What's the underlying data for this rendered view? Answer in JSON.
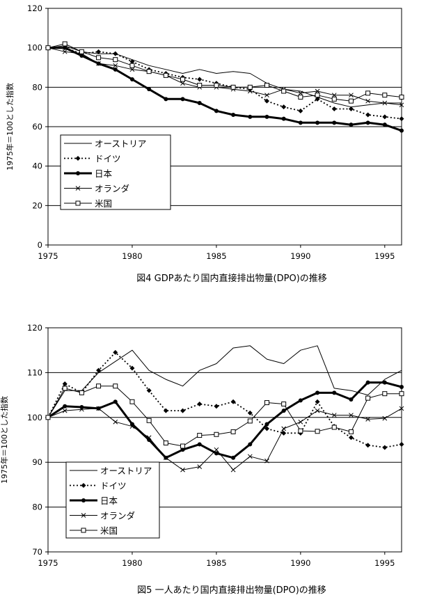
{
  "chart_data": [
    {
      "type": "line",
      "title": "図4 GDPあたり国内直接排出物量(DPO)の推移",
      "xlabel": "",
      "ylabel": "1975年＝100とした指数",
      "xlim": [
        1975,
        1996
      ],
      "ylim": [
        0,
        120
      ],
      "x_ticks": [
        "1975",
        "1980",
        "1985",
        "1990",
        "1995"
      ],
      "y_ticks": [
        "0",
        "20",
        "40",
        "60",
        "80",
        "100",
        "120"
      ],
      "grid": "horizontal",
      "legend_position": "bottom-left",
      "x": [
        1975,
        1976,
        1977,
        1978,
        1979,
        1980,
        1981,
        1982,
        1983,
        1984,
        1985,
        1986,
        1987,
        1988,
        1989,
        1990,
        1991,
        1992,
        1993,
        1994,
        1995,
        1996
      ],
      "series": [
        {
          "name": "オーストリア",
          "style": "thin",
          "values": [
            100,
            101,
            98,
            97,
            97,
            94,
            91,
            89,
            87,
            89,
            87,
            88,
            87,
            82,
            79,
            78,
            75,
            72,
            70,
            71,
            72,
            72
          ]
        },
        {
          "name": "ドイツ",
          "style": "dotted-diamond",
          "values": [
            100,
            100,
            97,
            98,
            97,
            93,
            89,
            87,
            85,
            84,
            82,
            80,
            79,
            73,
            70,
            68,
            74,
            69,
            69,
            66,
            65,
            64
          ]
        },
        {
          "name": "日本",
          "style": "bold-dot",
          "values": [
            100,
            100,
            96,
            92,
            89,
            84,
            79,
            74,
            74,
            72,
            68,
            66,
            65,
            65,
            64,
            62,
            62,
            62,
            61,
            62,
            61,
            58
          ]
        },
        {
          "name": "オランダ",
          "style": "cross",
          "values": [
            100,
            98,
            97,
            92,
            91,
            89,
            88,
            86,
            82,
            80,
            80,
            79,
            78,
            76,
            79,
            77,
            78,
            76,
            76,
            73,
            72,
            71
          ]
        },
        {
          "name": "米国",
          "style": "square",
          "values": [
            100,
            102,
            98,
            95,
            94,
            91,
            88,
            86,
            84,
            81,
            81,
            80,
            80,
            81,
            78,
            75,
            76,
            74,
            73,
            77,
            76,
            75
          ]
        }
      ]
    },
    {
      "type": "line",
      "title": "図5 一人あたり国内直接排出物量(DPO)の推移",
      "xlabel": "",
      "ylabel": "1975年＝100とした指数",
      "xlim": [
        1975,
        1996
      ],
      "ylim": [
        70,
        120
      ],
      "x_ticks": [
        "1975",
        "1980",
        "1985",
        "1990",
        "1995"
      ],
      "y_ticks": [
        "70",
        "80",
        "90",
        "100",
        "110",
        "120"
      ],
      "grid": "horizontal",
      "legend_position": "bottom-left",
      "x": [
        1975,
        1976,
        1977,
        1978,
        1979,
        1980,
        1981,
        1982,
        1983,
        1984,
        1985,
        1986,
        1987,
        1988,
        1989,
        1990,
        1991,
        1992,
        1993,
        1994,
        1995,
        1996
      ],
      "series": [
        {
          "name": "オーストリア",
          "style": "thin",
          "values": [
            100,
            106,
            106,
            110,
            112.5,
            115,
            110.5,
            108.5,
            107,
            110.5,
            112,
            115.5,
            116,
            113,
            112,
            115,
            116,
            106.5,
            106,
            105,
            108.5,
            110.5
          ]
        },
        {
          "name": "ドイツ",
          "style": "dotted-diamond",
          "values": [
            100,
            107.5,
            105.5,
            110.5,
            114.5,
            111,
            106,
            101.5,
            101.5,
            103,
            102.5,
            103.5,
            101,
            97.5,
            96.5,
            96.5,
            103.5,
            98,
            95.5,
            93.8,
            93.3,
            94
          ]
        },
        {
          "name": "日本",
          "style": "bold-dot",
          "values": [
            100,
            102.5,
            102.3,
            102,
            103.5,
            98.5,
            95,
            91,
            92.8,
            94,
            92,
            91,
            94,
            98.5,
            101.5,
            103.8,
            105.5,
            105.5,
            104,
            107.8,
            107.8,
            106.8
          ]
        },
        {
          "name": "オランダ",
          "style": "cross",
          "values": [
            100,
            101.5,
            101.8,
            102,
            99,
            98,
            95.5,
            91,
            88.3,
            89,
            92.8,
            88.3,
            91.3,
            90.3,
            97.5,
            99,
            101.5,
            100.5,
            100.5,
            99.6,
            99.8,
            102
          ]
        },
        {
          "name": "米国",
          "style": "square",
          "values": [
            100,
            106.5,
            105.5,
            107,
            107,
            103.5,
            99.3,
            94.3,
            93.6,
            96,
            96.2,
            96.8,
            99.2,
            103.3,
            103,
            97,
            96.9,
            97.8,
            96.8,
            104.3,
            105.3,
            105.3
          ]
        }
      ]
    }
  ]
}
